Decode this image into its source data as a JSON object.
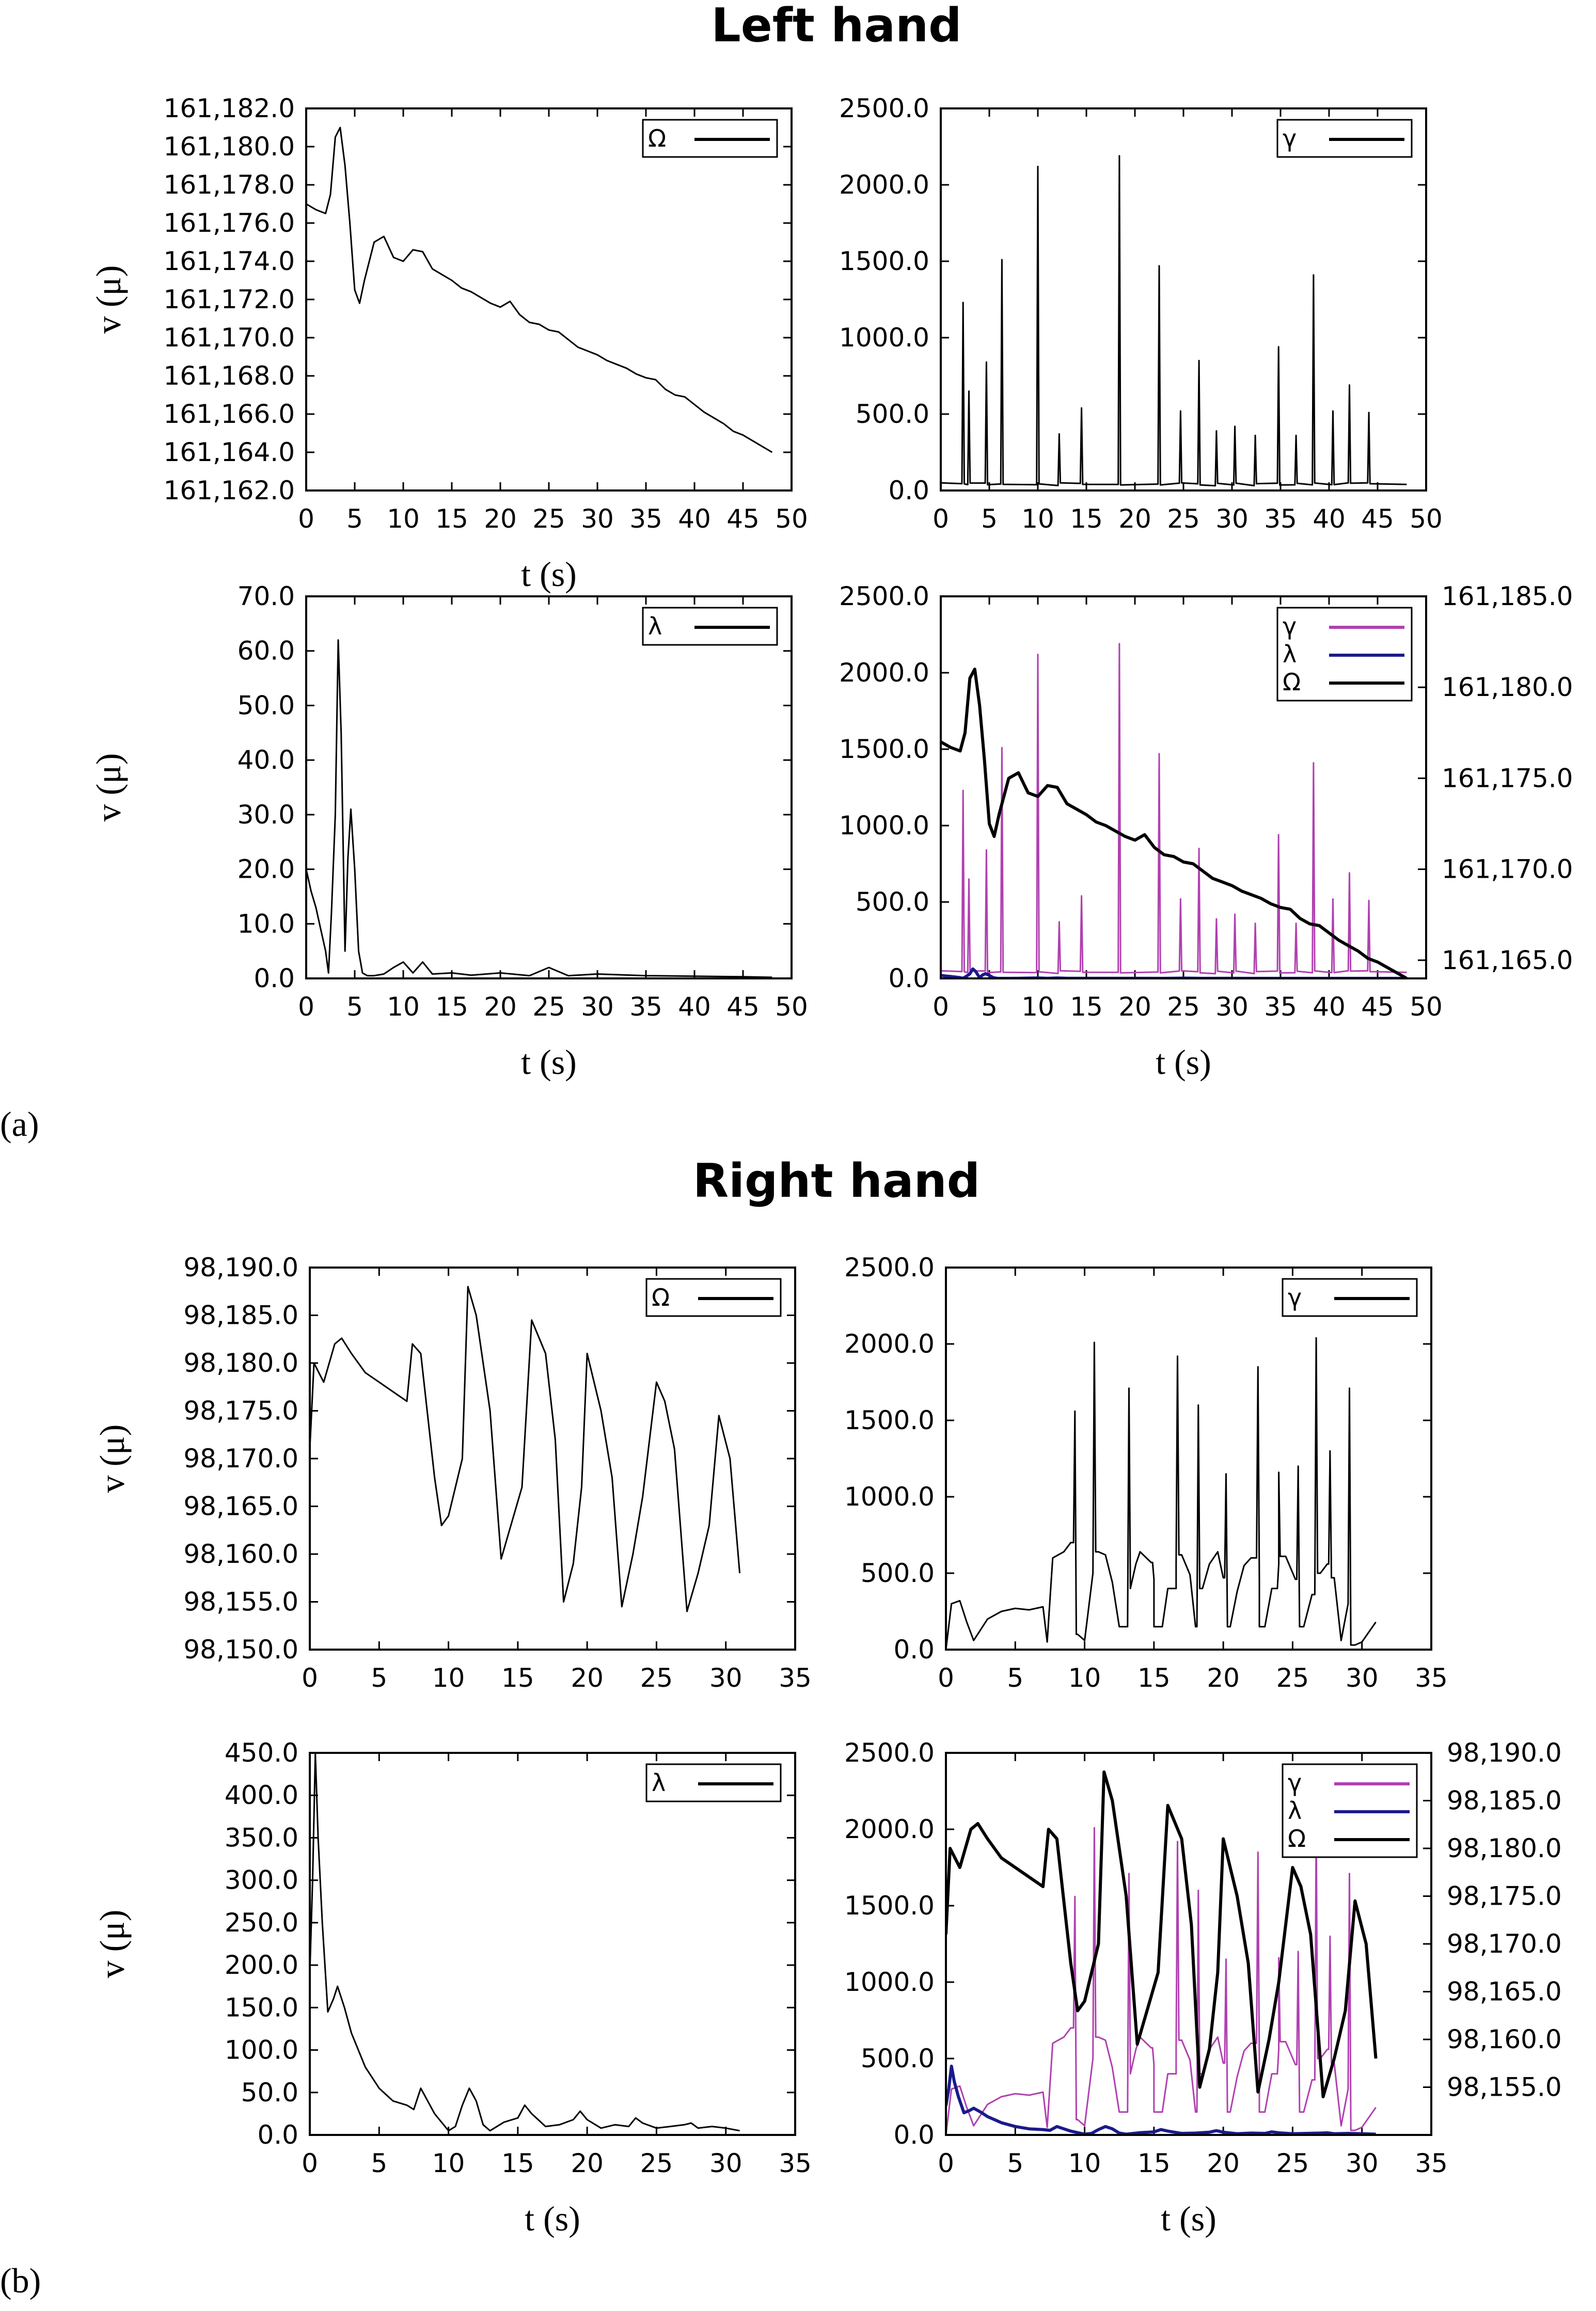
{
  "figure": {
    "title_a": "Left hand",
    "title_b": "Right hand",
    "label_a": "(a)",
    "label_b": "(b)"
  },
  "colors": {
    "gamma": "#b040b0",
    "lambda": "#1a1a8c",
    "omega": "#000000",
    "single": "#000000"
  },
  "chart_data": [
    {
      "id": "a1",
      "type": "line",
      "title": "",
      "xlabel": "t (s)",
      "ylabel": "v (μ)",
      "xlim": [
        0,
        50
      ],
      "ylim": [
        161162,
        161182
      ],
      "x_ticks": [
        0,
        5,
        10,
        15,
        20,
        25,
        30,
        35,
        40,
        45,
        50
      ],
      "y_ticks": [
        161162,
        161164,
        161166,
        161168,
        161170,
        161172,
        161174,
        161176,
        161178,
        161180,
        161182
      ],
      "y_tick_labels": [
        "161,162.0",
        "161,164.0",
        "161,166.0",
        "161,168.0",
        "161,170.0",
        "161,172.0",
        "161,174.0",
        "161,176.0",
        "161,178.0",
        "161,180.0",
        "161,182.0"
      ],
      "legend": "top-right",
      "series": [
        {
          "name": "Ω",
          "color_key": "single",
          "x": [
            0,
            1,
            2,
            2.5,
            3,
            3.5,
            4,
            4.5,
            5,
            5.5,
            6,
            7,
            8,
            9,
            10,
            11,
            12,
            13,
            14,
            15,
            16,
            17,
            18,
            19,
            20,
            21,
            22,
            23,
            24,
            25,
            26,
            27,
            28,
            29,
            30,
            31,
            32,
            33,
            34,
            35,
            36,
            37,
            38,
            39,
            40,
            41,
            42,
            43,
            44,
            45,
            46,
            47,
            48
          ],
          "y": [
            161177,
            161176.7,
            161176.5,
            161177.5,
            161180.5,
            161181,
            161179,
            161176,
            161172.5,
            161171.8,
            161173,
            161175,
            161175.3,
            161174.2,
            161174,
            161174.6,
            161174.5,
            161173.6,
            161173.3,
            161173,
            161172.6,
            161172.4,
            161172.1,
            161171.8,
            161171.6,
            161171.9,
            161171.2,
            161170.8,
            161170.7,
            161170.4,
            161170.3,
            161169.9,
            161169.5,
            161169.3,
            161169.1,
            161168.8,
            161168.6,
            161168.4,
            161168.1,
            161167.9,
            161167.8,
            161167.3,
            161167.0,
            161166.9,
            161166.5,
            161166.1,
            161165.8,
            161165.5,
            161165.1,
            161164.9,
            161164.6,
            161164.3,
            161164.0
          ]
        }
      ]
    },
    {
      "id": "a2",
      "type": "line",
      "title": "",
      "xlabel": "",
      "ylabel": "",
      "xlim": [
        0,
        50
      ],
      "ylim": [
        0,
        2500
      ],
      "x_ticks": [
        0,
        5,
        10,
        15,
        20,
        25,
        30,
        35,
        40,
        45,
        50
      ],
      "y_ticks": [
        0,
        500,
        1000,
        1500,
        2000,
        2500
      ],
      "y_tick_labels": [
        "0.0",
        "500.0",
        "1000.0",
        "1500.0",
        "2000.0",
        "2500.0"
      ],
      "legend": "top-right",
      "series": [
        {
          "name": "γ",
          "color_key": "single",
          "baseline": 50,
          "spikes": [
            [
              2.3,
              1230
            ],
            [
              2.9,
              650
            ],
            [
              4.7,
              840
            ],
            [
              6.3,
              1510
            ],
            [
              10,
              2120
            ],
            [
              12.2,
              370
            ],
            [
              14.5,
              540
            ],
            [
              18.4,
              2190
            ],
            [
              22.5,
              1470
            ],
            [
              24.7,
              520
            ],
            [
              26.6,
              850
            ],
            [
              28.4,
              390
            ],
            [
              30.3,
              420
            ],
            [
              32.4,
              360
            ],
            [
              34.8,
              940
            ],
            [
              36.6,
              360
            ],
            [
              38.4,
              1410
            ],
            [
              40.4,
              520
            ],
            [
              42.1,
              690
            ],
            [
              44.1,
              510
            ]
          ]
        }
      ]
    },
    {
      "id": "a3",
      "type": "line",
      "title": "",
      "xlabel": "t (s)",
      "ylabel": "v (μ)",
      "xlim": [
        0,
        50
      ],
      "ylim": [
        0,
        70
      ],
      "x_ticks": [
        0,
        5,
        10,
        15,
        20,
        25,
        30,
        35,
        40,
        45,
        50
      ],
      "y_ticks": [
        0,
        10,
        20,
        30,
        40,
        50,
        60,
        70
      ],
      "y_tick_labels": [
        "0.0",
        "10.0",
        "20.0",
        "30.0",
        "40.0",
        "50.0",
        "60.0",
        "70.0"
      ],
      "legend": "top-right",
      "series": [
        {
          "name": "λ",
          "color_key": "single",
          "x": [
            0,
            0.5,
            1,
            1.5,
            2,
            2.3,
            2.6,
            3,
            3.3,
            3.6,
            4,
            4.3,
            4.6,
            5,
            5.4,
            5.8,
            6.3,
            7,
            8,
            9,
            10,
            11,
            12,
            13,
            15,
            17,
            20,
            23,
            25,
            27,
            30,
            35,
            40,
            45,
            48
          ],
          "y": [
            20,
            16,
            13,
            9,
            5,
            1,
            12,
            30,
            62,
            45,
            5,
            22,
            31,
            20,
            5,
            1,
            0.5,
            0.5,
            0.8,
            2,
            3,
            1,
            3,
            0.8,
            1,
            0.6,
            1,
            0.5,
            2,
            0.5,
            0.8,
            0.5,
            0.4,
            0.3,
            0.2
          ]
        }
      ]
    },
    {
      "id": "a4",
      "type": "line",
      "title": "",
      "xlabel": "t (s)",
      "ylabel": "",
      "xlim": [
        0,
        50
      ],
      "ylim": [
        0,
        2500
      ],
      "y2lim": [
        161164,
        161185
      ],
      "x_ticks": [
        0,
        5,
        10,
        15,
        20,
        25,
        30,
        35,
        40,
        45,
        50
      ],
      "y_ticks": [
        0,
        500,
        1000,
        1500,
        2000,
        2500
      ],
      "y_tick_labels": [
        "0.0",
        "500.0",
        "1000.0",
        "1500.0",
        "2000.0",
        "2500.0"
      ],
      "y2_ticks": [
        161165,
        161170,
        161175,
        161180,
        161185
      ],
      "y2_tick_labels": [
        "161,165.0",
        "161,170.0",
        "161,175.0",
        "161,180.0",
        "161,185.0"
      ],
      "legend": "top-right",
      "series": [
        {
          "name": "γ",
          "color_key": "gamma",
          "axis": "left",
          "ref": "a2"
        },
        {
          "name": "λ",
          "color_key": "lambda",
          "axis": "left",
          "scale": 1,
          "ref": "a3"
        },
        {
          "name": "Ω",
          "color_key": "omega",
          "axis": "right",
          "ref": "a1"
        }
      ]
    },
    {
      "id": "b1",
      "type": "line",
      "title": "",
      "xlabel": "",
      "ylabel": "v (μ)",
      "xlim": [
        0,
        35
      ],
      "ylim": [
        98150,
        98190
      ],
      "x_ticks": [
        0,
        5,
        10,
        15,
        20,
        25,
        30,
        35
      ],
      "y_ticks": [
        98150,
        98155,
        98160,
        98165,
        98170,
        98175,
        98180,
        98185,
        98190
      ],
      "y_tick_labels": [
        "98,150.0",
        "98,155.0",
        "98,160.0",
        "98,165.0",
        "98,170.0",
        "98,175.0",
        "98,180.0",
        "98,185.0",
        "98,190.0"
      ],
      "legend": "top-right",
      "series": [
        {
          "name": "Ω",
          "color_key": "single",
          "x": [
            0,
            0.3,
            1,
            1.8,
            2.3,
            3,
            4,
            5,
            6,
            7,
            7.4,
            8,
            9,
            9.5,
            10,
            11,
            11.4,
            12,
            13,
            13.8,
            14.5,
            15.3,
            16,
            17,
            17.7,
            18.3,
            19,
            19.6,
            20,
            21,
            21.8,
            22.5,
            23.3,
            24,
            25,
            25.6,
            26.3,
            27.2,
            28,
            28.8,
            29.5,
            30.3,
            31
          ],
          "y": [
            98171,
            98180,
            98178,
            98182,
            98182.6,
            98181,
            98179,
            98178,
            98177,
            98176,
            98182,
            98181,
            98168,
            98163,
            98164,
            98170,
            98188,
            98185,
            98175,
            98159.5,
            98163,
            98167,
            98184.5,
            98181,
            98172,
            98155,
            98159,
            98167,
            98181,
            98175,
            98168,
            98154.5,
            98160,
            98166,
            98178,
            98176,
            98171,
            98154,
            98158,
            98163,
            98174.5,
            98170,
            98158
          ]
        }
      ]
    },
    {
      "id": "b2",
      "type": "line",
      "title": "",
      "xlabel": "",
      "ylabel": "",
      "xlim": [
        0,
        35
      ],
      "ylim": [
        0,
        2500
      ],
      "x_ticks": [
        0,
        5,
        10,
        15,
        20,
        25,
        30,
        35
      ],
      "y_ticks": [
        0,
        500,
        1000,
        1500,
        2000,
        2500
      ],
      "y_tick_labels": [
        "0.0",
        "500.0",
        "1000.0",
        "1500.0",
        "2000.0",
        "2500.0"
      ],
      "legend": "top-right",
      "series": [
        {
          "name": "γ",
          "color_key": "single",
          "x": [
            0,
            0.4,
            1,
            1.5,
            2,
            3,
            4,
            5,
            6,
            7,
            7.3,
            7.7,
            8.5,
            9,
            9.5,
            10,
            10.6,
            11,
            11.5,
            12,
            12.5,
            13.3,
            13.7,
            14,
            15,
            15.6,
            16,
            16.6,
            17,
            17.6,
            18,
            18.5,
            19,
            19.6,
            20,
            20.5,
            21,
            21.5,
            22,
            22.6,
            23,
            23.5,
            24,
            24.5,
            25.2,
            25.8,
            26.4,
            27,
            27.5,
            28,
            28.5,
            29,
            29.5,
            30,
            31
          ],
          "y": [
            0,
            300,
            320,
            180,
            60,
            200,
            250,
            270,
            260,
            280,
            50,
            600,
            640,
            700,
            100,
            60,
            500,
            640,
            620,
            440,
            150,
            400,
            560,
            640,
            460,
            150,
            400,
            560,
            620,
            490,
            150,
            400,
            560,
            640,
            470,
            150,
            380,
            550,
            600,
            450,
            150,
            400,
            560,
            610,
            460,
            150,
            360,
            500,
            560,
            470,
            60,
            300,
            30,
            50,
            180
          ],
          "spikes": [
            [
              9.3,
              1560
            ],
            [
              10.7,
              2010
            ],
            [
              13.2,
              1710
            ],
            [
              14.9,
              570
            ],
            [
              16.7,
              1920
            ],
            [
              18.2,
              1600
            ],
            [
              20.2,
              1150
            ],
            [
              22.5,
              1850
            ],
            [
              24,
              1160
            ],
            [
              25.4,
              1200
            ],
            [
              26.7,
              2040
            ],
            [
              27.7,
              1300
            ],
            [
              29.1,
              1710
            ]
          ]
        }
      ]
    },
    {
      "id": "b3",
      "type": "line",
      "title": "",
      "xlabel": "t (s)",
      "ylabel": "v (μ)",
      "xlim": [
        0,
        35
      ],
      "ylim": [
        0,
        450
      ],
      "x_ticks": [
        0,
        5,
        10,
        15,
        20,
        25,
        30,
        35
      ],
      "y_ticks": [
        0,
        50,
        100,
        150,
        200,
        250,
        300,
        350,
        400,
        450
      ],
      "y_tick_labels": [
        "0.0",
        "50.0",
        "100.0",
        "150.0",
        "200.0",
        "250.0",
        "300.0",
        "350.0",
        "400.0",
        "450.0"
      ],
      "legend": "top-right",
      "series": [
        {
          "name": "λ",
          "color_key": "single",
          "x": [
            0,
            0.2,
            0.4,
            0.6,
            0.9,
            1.3,
            1.7,
            2,
            2.5,
            3,
            4,
            5,
            6,
            7,
            7.5,
            8,
            8.5,
            9,
            9.5,
            10,
            10.5,
            11,
            11.5,
            12,
            12.5,
            13,
            14,
            15,
            15.5,
            16,
            17,
            18,
            19,
            19.5,
            20,
            21,
            22,
            23,
            23.5,
            24,
            25,
            26,
            27,
            27.5,
            28,
            29,
            30,
            31
          ],
          "y": [
            190,
            300,
            450,
            350,
            250,
            145,
            160,
            175,
            150,
            120,
            80,
            55,
            40,
            35,
            30,
            55,
            40,
            25,
            15,
            5,
            10,
            35,
            55,
            40,
            12,
            5,
            15,
            20,
            35,
            25,
            10,
            12,
            18,
            28,
            18,
            8,
            12,
            10,
            20,
            14,
            8,
            10,
            12,
            14,
            8,
            10,
            8,
            5
          ]
        }
      ]
    },
    {
      "id": "b4",
      "type": "line",
      "title": "",
      "xlabel": "t (s)",
      "ylabel": "",
      "xlim": [
        0,
        35
      ],
      "ylim": [
        0,
        2500
      ],
      "y2lim": [
        98150,
        98190
      ],
      "x_ticks": [
        0,
        5,
        10,
        15,
        20,
        25,
        30,
        35
      ],
      "y_ticks": [
        0,
        500,
        1000,
        1500,
        2000,
        2500
      ],
      "y_tick_labels": [
        "0.0",
        "500.0",
        "1000.0",
        "1500.0",
        "2000.0",
        "2500.0"
      ],
      "y2_ticks": [
        98155,
        98160,
        98165,
        98170,
        98175,
        98180,
        98185,
        98190
      ],
      "y2_tick_labels": [
        "98,155.0",
        "98,160.0",
        "98,165.0",
        "98,170.0",
        "98,175.0",
        "98,180.0",
        "98,185.0",
        "98,190.0"
      ],
      "legend": "top-right",
      "series": [
        {
          "name": "γ",
          "color_key": "gamma",
          "axis": "left",
          "ref": "b2"
        },
        {
          "name": "λ",
          "color_key": "lambda",
          "axis": "left",
          "ref": "b3"
        },
        {
          "name": "Ω",
          "color_key": "omega",
          "axis": "right",
          "ref": "b1"
        }
      ]
    }
  ]
}
